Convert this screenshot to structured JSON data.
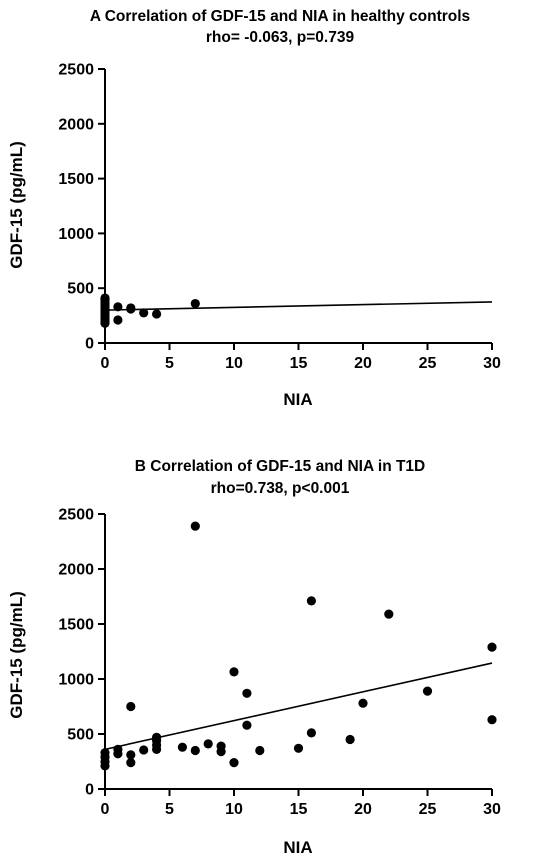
{
  "chart_data": [
    {
      "type": "scatter",
      "panel": "A",
      "title": "A  Correlation of GDF-15 and NIA in healthy controls",
      "subtitle": "rho= -0.063, p=0.739",
      "xlabel": "NIA",
      "ylabel": "GDF-15 (pg/mL)",
      "xlim": [
        0,
        30
      ],
      "ylim": [
        0,
        2500
      ],
      "xticks": [
        "0",
        "5",
        "10",
        "15",
        "20",
        "25",
        "30"
      ],
      "yticks": [
        "0",
        "500",
        "1000",
        "1500",
        "2000",
        "2500"
      ],
      "points": [
        {
          "x": 0,
          "y": 180
        },
        {
          "x": 0,
          "y": 200
        },
        {
          "x": 0,
          "y": 220
        },
        {
          "x": 0,
          "y": 240
        },
        {
          "x": 0,
          "y": 260
        },
        {
          "x": 0,
          "y": 280
        },
        {
          "x": 0,
          "y": 300
        },
        {
          "x": 0,
          "y": 320
        },
        {
          "x": 0,
          "y": 340
        },
        {
          "x": 0,
          "y": 360
        },
        {
          "x": 0,
          "y": 380
        },
        {
          "x": 0,
          "y": 400
        },
        {
          "x": 0,
          "y": 410
        },
        {
          "x": 1,
          "y": 210
        },
        {
          "x": 1,
          "y": 330
        },
        {
          "x": 2,
          "y": 310
        },
        {
          "x": 2,
          "y": 320
        },
        {
          "x": 3,
          "y": 275
        },
        {
          "x": 4,
          "y": 265
        },
        {
          "x": 7,
          "y": 360
        }
      ],
      "fit_line": [
        {
          "x": 0,
          "y": 300
        },
        {
          "x": 30,
          "y": 375
        }
      ],
      "grid": false
    },
    {
      "type": "scatter",
      "panel": "B",
      "title": "B  Correlation of GDF-15 and NIA in T1D",
      "subtitle": "rho=0.738, p<0.001",
      "xlabel": "NIA",
      "ylabel": "GDF-15 (pg/mL)",
      "xlim": [
        0,
        30
      ],
      "ylim": [
        0,
        2500
      ],
      "xticks": [
        "0",
        "5",
        "10",
        "15",
        "20",
        "25",
        "30"
      ],
      "yticks": [
        "0",
        "500",
        "1000",
        "1500",
        "2000",
        "2500"
      ],
      "points": [
        {
          "x": 0,
          "y": 210
        },
        {
          "x": 0,
          "y": 250
        },
        {
          "x": 0,
          "y": 290
        },
        {
          "x": 0,
          "y": 330
        },
        {
          "x": 1,
          "y": 320
        },
        {
          "x": 1,
          "y": 360
        },
        {
          "x": 2,
          "y": 240
        },
        {
          "x": 2,
          "y": 310
        },
        {
          "x": 2,
          "y": 750
        },
        {
          "x": 3,
          "y": 355
        },
        {
          "x": 4,
          "y": 360
        },
        {
          "x": 4,
          "y": 400
        },
        {
          "x": 4,
          "y": 440
        },
        {
          "x": 4,
          "y": 470
        },
        {
          "x": 6,
          "y": 380
        },
        {
          "x": 7,
          "y": 350
        },
        {
          "x": 7,
          "y": 2390
        },
        {
          "x": 8,
          "y": 410
        },
        {
          "x": 9,
          "y": 340
        },
        {
          "x": 9,
          "y": 390
        },
        {
          "x": 10,
          "y": 240
        },
        {
          "x": 10,
          "y": 1065
        },
        {
          "x": 11,
          "y": 580
        },
        {
          "x": 11,
          "y": 870
        },
        {
          "x": 12,
          "y": 350
        },
        {
          "x": 15,
          "y": 370
        },
        {
          "x": 16,
          "y": 510
        },
        {
          "x": 16,
          "y": 1710
        },
        {
          "x": 19,
          "y": 450
        },
        {
          "x": 20,
          "y": 780
        },
        {
          "x": 22,
          "y": 1590
        },
        {
          "x": 25,
          "y": 890
        },
        {
          "x": 30,
          "y": 630
        },
        {
          "x": 30,
          "y": 1290
        }
      ],
      "fit_line": [
        {
          "x": 0,
          "y": 360
        },
        {
          "x": 30,
          "y": 1145
        }
      ],
      "grid": false
    }
  ]
}
